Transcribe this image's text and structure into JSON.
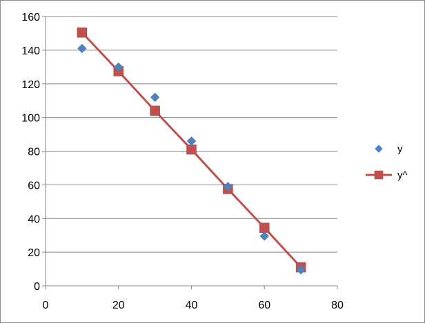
{
  "chart_data": {
    "type": "scatter",
    "title": "",
    "xlabel": "",
    "ylabel": "",
    "xlim": [
      0,
      80
    ],
    "ylim": [
      0,
      160
    ],
    "xticks": [
      0,
      20,
      40,
      60,
      80
    ],
    "yticks": [
      0,
      20,
      40,
      60,
      80,
      100,
      120,
      140,
      160
    ],
    "grid": "horizontal",
    "legend": "right",
    "series": [
      {
        "name": "y",
        "mode": "markers",
        "marker": "diamond",
        "color": "#4f81bd",
        "x": [
          10,
          20,
          30,
          40,
          50,
          60,
          70
        ],
        "y": [
          141,
          130,
          112,
          86,
          59,
          29.5,
          9.5
        ]
      },
      {
        "name": "y^",
        "mode": "lines+markers",
        "marker": "square",
        "color": "#c0504d",
        "x": [
          10,
          20,
          30,
          40,
          50,
          60,
          70
        ],
        "y": [
          150.5,
          127.5,
          104,
          81,
          57.5,
          34.5,
          11
        ]
      }
    ]
  }
}
